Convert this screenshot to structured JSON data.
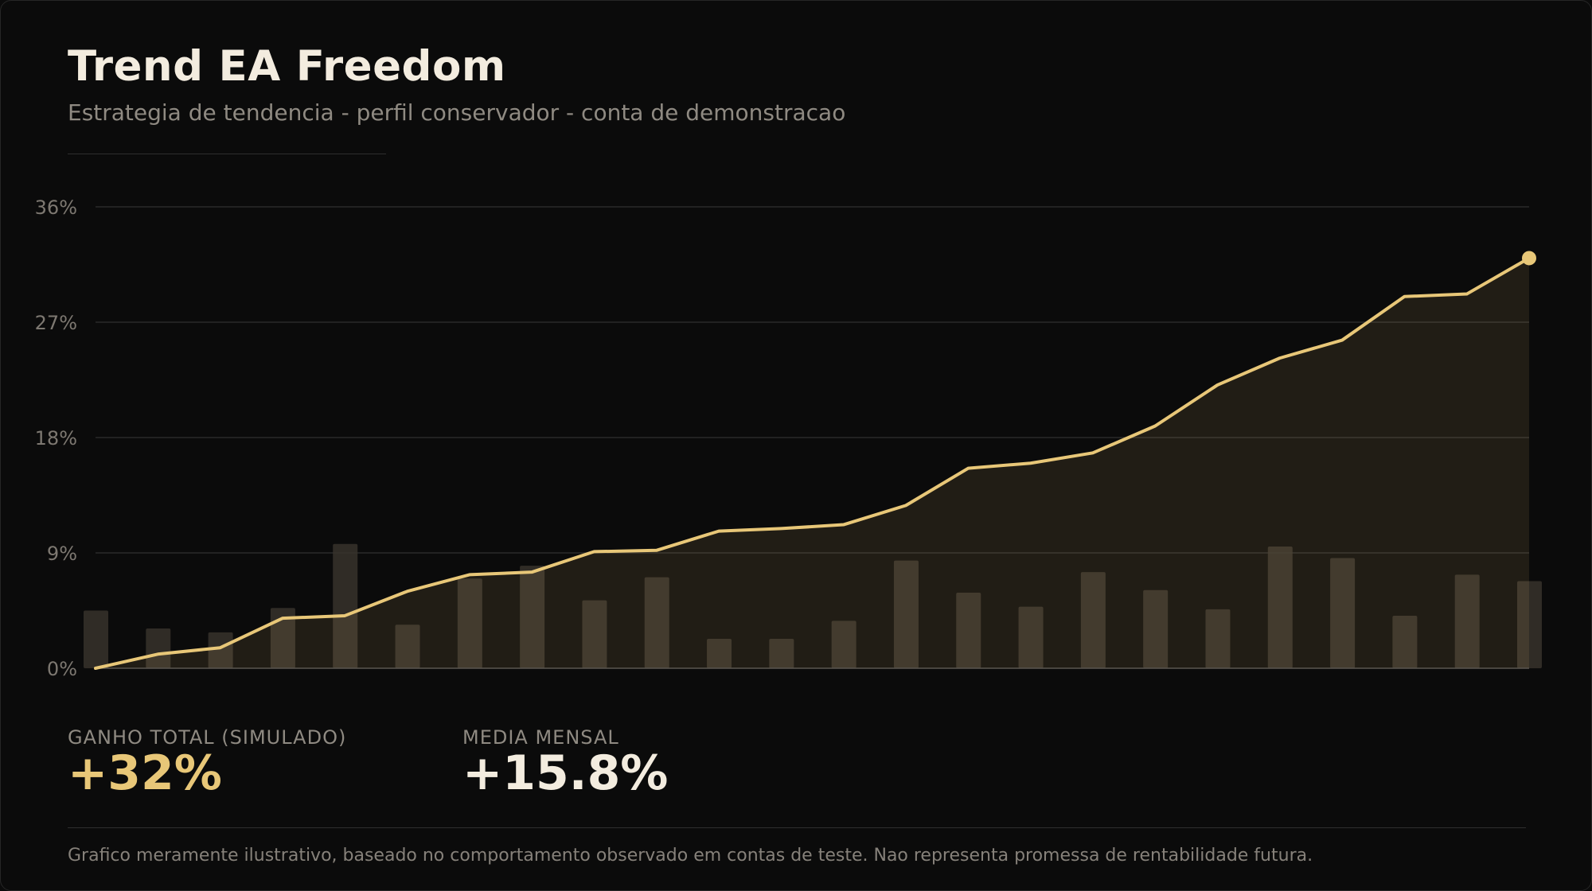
{
  "header": {
    "title": "Trend EA Freedom",
    "subtitle": "Estrategia de tendencia - perfil conservador - conta de demonstracao"
  },
  "stats": [
    {
      "label": "GANHO TOTAL (SIMULADO)",
      "value": "+32%"
    },
    {
      "label": "MEDIA MENSAL",
      "value": "+15.8%"
    }
  ],
  "footnote": "Grafico meramente ilustrativo, baseado no comportamento observado em contas de teste. Nao representa promessa de rentabilidade futura.",
  "colors": {
    "accent": "#e8c778",
    "background": "#0b0b0b",
    "grid": "#2a2a2a",
    "bar": "#3a352d",
    "area": "#221e16"
  },
  "chart_data": {
    "type": "line",
    "title": "",
    "xlabel": "",
    "ylabel": "",
    "ylim": [
      0,
      36
    ],
    "y_ticks": [
      0,
      9,
      18,
      27,
      36
    ],
    "y_tick_labels": [
      "0%",
      "9%",
      "18%",
      "27%",
      "36%"
    ],
    "grid": true,
    "series": [
      {
        "type": "line",
        "values": [
          0,
          1.1,
          1.6,
          3.9,
          4.1,
          6.0,
          7.3,
          7.5,
          9.1,
          9.2,
          10.7,
          10.9,
          11.2,
          12.7,
          15.6,
          16.0,
          16.8,
          18.9,
          22.1,
          24.2,
          25.6,
          29.0,
          29.2,
          32.0
        ]
      },
      {
        "type": "bar",
        "values": [
          4.5,
          3.1,
          2.8,
          4.7,
          9.7,
          3.4,
          7.0,
          8.0,
          5.3,
          7.1,
          2.3,
          2.3,
          3.7,
          8.4,
          5.9,
          4.8,
          7.5,
          6.1,
          4.6,
          9.5,
          8.6,
          4.1,
          7.3,
          6.8
        ]
      }
    ]
  }
}
